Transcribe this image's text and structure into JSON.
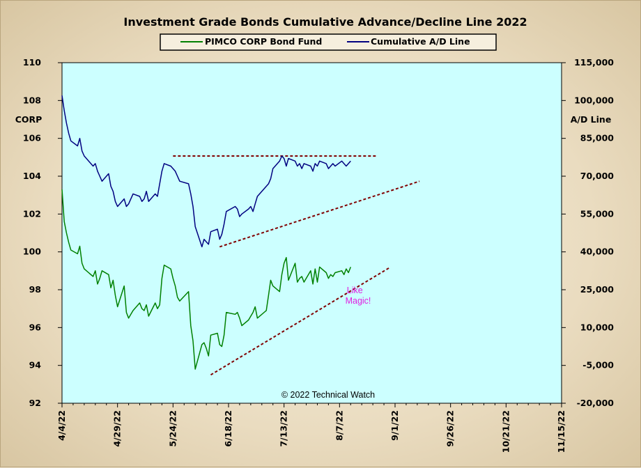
{
  "chart_data": {
    "type": "line",
    "title": "Investment Grade Bonds Cumulative Advance/Decline Line 2022",
    "left_axis": {
      "label": "CORP",
      "min": 92,
      "max": 110,
      "step": 2,
      "ticks": [
        "92",
        "94",
        "96",
        "98",
        "100",
        "102",
        "104",
        "106",
        "108",
        "110"
      ]
    },
    "right_axis": {
      "label": "A/D Line",
      "min": -20000,
      "max": 115000,
      "step": 15000,
      "ticks": [
        "-20,000",
        "-5,000",
        "10,000",
        "25,000",
        "40,000",
        "55,000",
        "70,000",
        "85,000",
        "100,000",
        "115,000"
      ]
    },
    "x_axis": {
      "ticks": [
        "4/4/22",
        "4/29/22",
        "5/24/22",
        "6/18/22",
        "7/13/22",
        "8/7/22",
        "9/1/22",
        "9/26/22",
        "10/21/22",
        "11/15/22"
      ],
      "range": [
        "2022-04-04",
        "2022-11-15"
      ]
    },
    "legend": {
      "placement": "top-center",
      "entries": [
        "PIMCO CORP Bond Fund",
        "Cumulative A/D Line"
      ]
    },
    "background": "#ccffff",
    "series": [
      {
        "name": "PIMCO CORP Bond Fund",
        "axis": "left",
        "color": "#008000",
        "x": [
          "2022-04-04",
          "2022-04-05",
          "2022-04-06",
          "2022-04-07",
          "2022-04-08",
          "2022-04-11",
          "2022-04-12",
          "2022-04-13",
          "2022-04-14",
          "2022-04-18",
          "2022-04-19",
          "2022-04-20",
          "2022-04-21",
          "2022-04-22",
          "2022-04-25",
          "2022-04-26",
          "2022-04-27",
          "2022-04-28",
          "2022-04-29",
          "2022-05-02",
          "2022-05-03",
          "2022-05-04",
          "2022-05-05",
          "2022-05-06",
          "2022-05-09",
          "2022-05-10",
          "2022-05-11",
          "2022-05-12",
          "2022-05-13",
          "2022-05-16",
          "2022-05-17",
          "2022-05-18",
          "2022-05-19",
          "2022-05-20",
          "2022-05-23",
          "2022-05-24",
          "2022-05-25",
          "2022-05-26",
          "2022-05-27",
          "2022-05-31",
          "2022-06-01",
          "2022-06-02",
          "2022-06-03",
          "2022-06-06",
          "2022-06-07",
          "2022-06-08",
          "2022-06-09",
          "2022-06-10",
          "2022-06-13",
          "2022-06-14",
          "2022-06-15",
          "2022-06-16",
          "2022-06-17",
          "2022-06-21",
          "2022-06-22",
          "2022-06-23",
          "2022-06-24",
          "2022-06-27",
          "2022-06-28",
          "2022-06-29",
          "2022-06-30",
          "2022-07-01",
          "2022-07-05",
          "2022-07-06",
          "2022-07-07",
          "2022-07-08",
          "2022-07-11",
          "2022-07-12",
          "2022-07-13",
          "2022-07-14",
          "2022-07-15",
          "2022-07-18",
          "2022-07-19",
          "2022-07-20",
          "2022-07-21",
          "2022-07-22",
          "2022-07-25",
          "2022-07-26",
          "2022-07-27",
          "2022-07-28",
          "2022-07-29",
          "2022-08-01",
          "2022-08-02",
          "2022-08-03",
          "2022-08-04",
          "2022-08-05",
          "2022-08-08",
          "2022-08-09",
          "2022-08-10",
          "2022-08-11",
          "2022-08-12"
        ],
        "values": [
          103.3,
          101.6,
          101.0,
          100.5,
          100.1,
          99.9,
          100.3,
          99.4,
          99.1,
          98.7,
          99.0,
          98.3,
          98.6,
          99.0,
          98.8,
          98.1,
          98.5,
          97.7,
          97.1,
          98.2,
          96.8,
          96.5,
          96.7,
          96.9,
          97.3,
          97.0,
          96.9,
          97.2,
          96.6,
          97.3,
          97.0,
          97.2,
          98.6,
          99.3,
          99.1,
          98.6,
          98.2,
          97.6,
          97.4,
          97.9,
          96.1,
          95.3,
          93.8,
          95.1,
          95.2,
          94.9,
          94.5,
          95.6,
          95.7,
          95.1,
          95.0,
          95.6,
          96.8,
          96.7,
          96.8,
          96.5,
          96.1,
          96.4,
          96.6,
          96.8,
          97.1,
          96.5,
          96.9,
          97.7,
          98.5,
          98.2,
          97.9,
          98.8,
          99.4,
          99.7,
          98.5,
          99.4,
          98.4,
          98.6,
          98.7,
          98.4,
          99.0,
          98.3,
          99.1,
          98.4,
          99.2,
          98.9,
          98.6,
          98.8,
          98.7,
          98.9,
          99.0,
          98.8,
          99.1,
          98.9,
          99.2
        ]
      },
      {
        "name": "Cumulative A/D Line",
        "axis": "right",
        "color": "#000080",
        "x": [
          "2022-04-04",
          "2022-04-05",
          "2022-04-06",
          "2022-04-07",
          "2022-04-08",
          "2022-04-11",
          "2022-04-12",
          "2022-04-13",
          "2022-04-14",
          "2022-04-18",
          "2022-04-19",
          "2022-04-20",
          "2022-04-21",
          "2022-04-22",
          "2022-04-25",
          "2022-04-26",
          "2022-04-27",
          "2022-04-28",
          "2022-04-29",
          "2022-05-02",
          "2022-05-03",
          "2022-05-04",
          "2022-05-05",
          "2022-05-06",
          "2022-05-09",
          "2022-05-10",
          "2022-05-11",
          "2022-05-12",
          "2022-05-13",
          "2022-05-16",
          "2022-05-17",
          "2022-05-18",
          "2022-05-19",
          "2022-05-20",
          "2022-05-23",
          "2022-05-24",
          "2022-05-25",
          "2022-05-26",
          "2022-05-27",
          "2022-05-31",
          "2022-06-01",
          "2022-06-02",
          "2022-06-03",
          "2022-06-06",
          "2022-06-07",
          "2022-06-08",
          "2022-06-09",
          "2022-06-10",
          "2022-06-13",
          "2022-06-14",
          "2022-06-15",
          "2022-06-16",
          "2022-06-17",
          "2022-06-21",
          "2022-06-22",
          "2022-06-23",
          "2022-06-24",
          "2022-06-27",
          "2022-06-28",
          "2022-06-29",
          "2022-06-30",
          "2022-07-01",
          "2022-07-05",
          "2022-07-06",
          "2022-07-07",
          "2022-07-08",
          "2022-07-11",
          "2022-07-12",
          "2022-07-13",
          "2022-07-14",
          "2022-07-15",
          "2022-07-18",
          "2022-07-19",
          "2022-07-20",
          "2022-07-21",
          "2022-07-22",
          "2022-07-25",
          "2022-07-26",
          "2022-07-27",
          "2022-07-28",
          "2022-07-29",
          "2022-08-01",
          "2022-08-02",
          "2022-08-03",
          "2022-08-04",
          "2022-08-05",
          "2022-08-08",
          "2022-08-09",
          "2022-08-10",
          "2022-08-11",
          "2022-08-12"
        ],
        "values": [
          102000,
          96000,
          91000,
          87000,
          84000,
          82000,
          85000,
          80000,
          78000,
          74000,
          75000,
          72000,
          70000,
          68000,
          71000,
          66000,
          64000,
          60000,
          58000,
          61000,
          58000,
          59000,
          61000,
          63000,
          62000,
          60000,
          61000,
          64000,
          60000,
          63000,
          62000,
          67000,
          72000,
          75000,
          74000,
          73000,
          72000,
          70000,
          68000,
          67000,
          63000,
          58000,
          50000,
          42000,
          45000,
          44000,
          43000,
          48000,
          49000,
          45000,
          47000,
          51000,
          56000,
          58000,
          57000,
          54000,
          55000,
          57000,
          58000,
          56000,
          59000,
          62000,
          66000,
          67000,
          69000,
          73000,
          76000,
          78000,
          77000,
          74000,
          77000,
          76000,
          74000,
          75000,
          73000,
          75000,
          74000,
          72000,
          75000,
          74000,
          76000,
          75000,
          73000,
          74000,
          75000,
          74000,
          76000,
          75000,
          74000,
          75000,
          76000
        ]
      }
    ],
    "trendlines": [
      {
        "axis": "right",
        "style": "dashed",
        "color": "#800000",
        "from": [
          "2022-05-24",
          78000
        ],
        "to": [
          "2022-08-24",
          78000
        ]
      },
      {
        "axis": "right",
        "style": "dashed",
        "color": "#800000",
        "from": [
          "2022-06-14",
          42000
        ],
        "to": [
          "2022-09-12",
          68000
        ]
      },
      {
        "axis": "left",
        "style": "dashed",
        "color": "#800000",
        "from": [
          "2022-06-10",
          93.5
        ],
        "to": [
          "2022-08-30",
          99.2
        ]
      }
    ],
    "annotations": [
      {
        "text": "Like\nMagic!",
        "color": "#e01ee0"
      }
    ],
    "copyright": "© 2022 Technical Watch",
    "grid": false
  }
}
